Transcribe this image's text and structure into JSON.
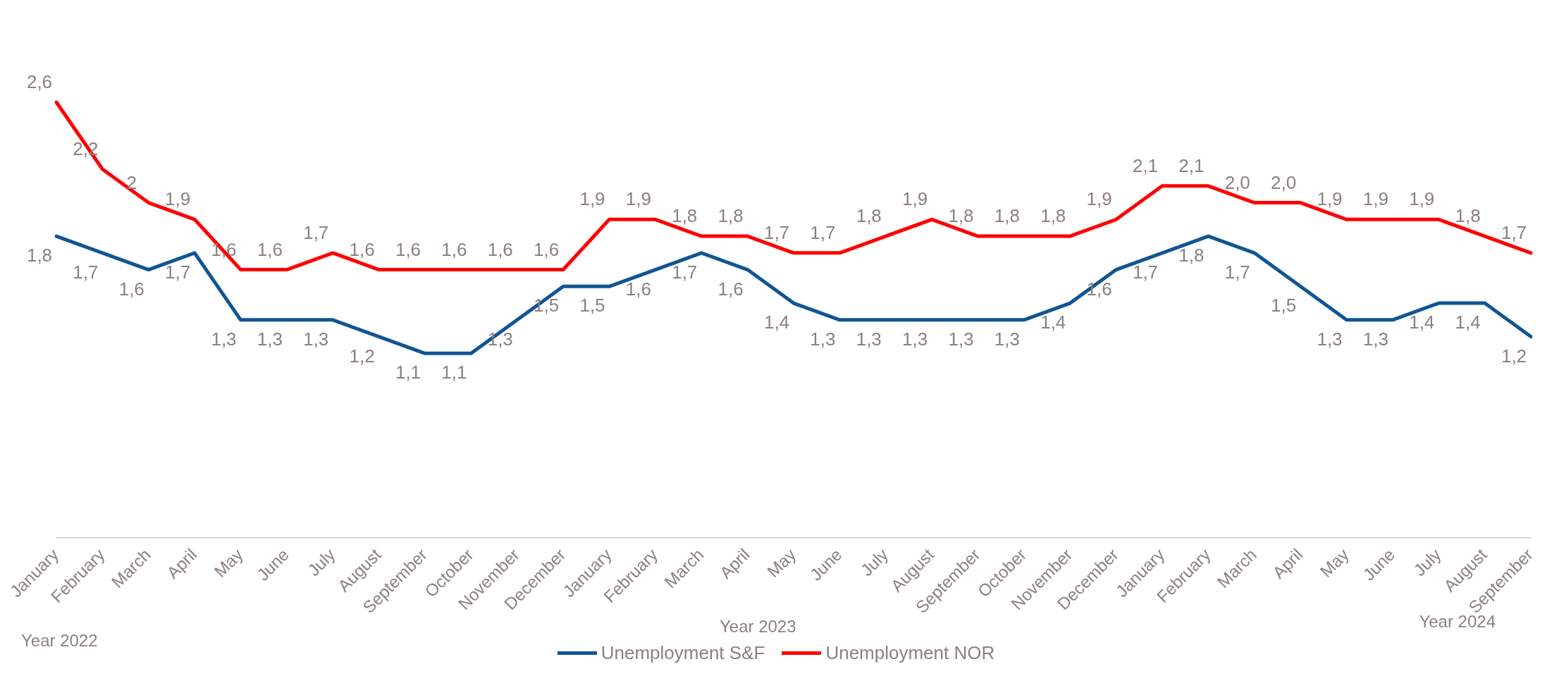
{
  "chart_data": {
    "type": "line",
    "categories": [
      "January",
      "February",
      "March",
      "April",
      "May",
      "June",
      "July",
      "August",
      "September",
      "October",
      "November",
      "December",
      "January",
      "February",
      "March",
      "April",
      "May",
      "June",
      "July",
      "August",
      "September",
      "October",
      "November",
      "December",
      "January",
      "February",
      "March",
      "April",
      "May",
      "June",
      "July",
      "August",
      "September"
    ],
    "series": [
      {
        "name": "Unemployment S&F",
        "color": "#0f5594",
        "values": [
          1.8,
          1.7,
          1.6,
          1.7,
          1.3,
          1.3,
          1.3,
          1.2,
          1.1,
          1.1,
          1.3,
          1.5,
          1.5,
          1.6,
          1.7,
          1.6,
          1.4,
          1.3,
          1.3,
          1.3,
          1.3,
          1.3,
          1.4,
          1.6,
          1.7,
          1.8,
          1.7,
          1.5,
          1.3,
          1.3,
          1.4,
          1.4,
          1.2
        ],
        "value_labels": [
          "1,8",
          "1,7",
          "1,6",
          "1,7",
          "1,3",
          "1,3",
          "1,3",
          "1,2",
          "1,1",
          "1,1",
          "1,3",
          "1,5",
          "1,5",
          "1,6",
          "1,7",
          "1,6",
          "1,4",
          "1,3",
          "1,3",
          "1,3",
          "1,3",
          "1,3",
          "1,4",
          "1,6",
          "1,7",
          "1,8",
          "1,7",
          "1,5",
          "1,3",
          "1,3",
          "1,4",
          "1,4",
          "1,2"
        ]
      },
      {
        "name": "Unemployment NOR",
        "color": "#ff0000",
        "values": [
          2.6,
          2.2,
          2.0,
          1.9,
          1.6,
          1.6,
          1.7,
          1.6,
          1.6,
          1.6,
          1.6,
          1.6,
          1.9,
          1.9,
          1.8,
          1.8,
          1.7,
          1.7,
          1.8,
          1.9,
          1.8,
          1.8,
          1.8,
          1.9,
          2.1,
          2.1,
          2.0,
          2.0,
          1.9,
          1.9,
          1.9,
          1.8,
          1.7
        ],
        "value_labels": [
          "2,6",
          "2,2",
          "2",
          "1,9",
          "1,6",
          "1,6",
          "1,7",
          "1,6",
          "1,6",
          "1,6",
          "1,6",
          "1,6",
          "1,9",
          "1,9",
          "1,8",
          "1,8",
          "1,7",
          "1,7",
          "1,8",
          "1,9",
          "1,8",
          "1,8",
          "1,8",
          "1,9",
          "2,1",
          "2,1",
          "2,0",
          "2,0",
          "1,9",
          "1,9",
          "1,9",
          "1,8",
          "1,7"
        ]
      }
    ],
    "tick_labels": "x",
    "grid": false,
    "legend": "bottom",
    "marker": "none",
    "line_style": "solid",
    "annotations": [
      "Year 2022",
      "Year 2023",
      "Year 2024"
    ]
  }
}
